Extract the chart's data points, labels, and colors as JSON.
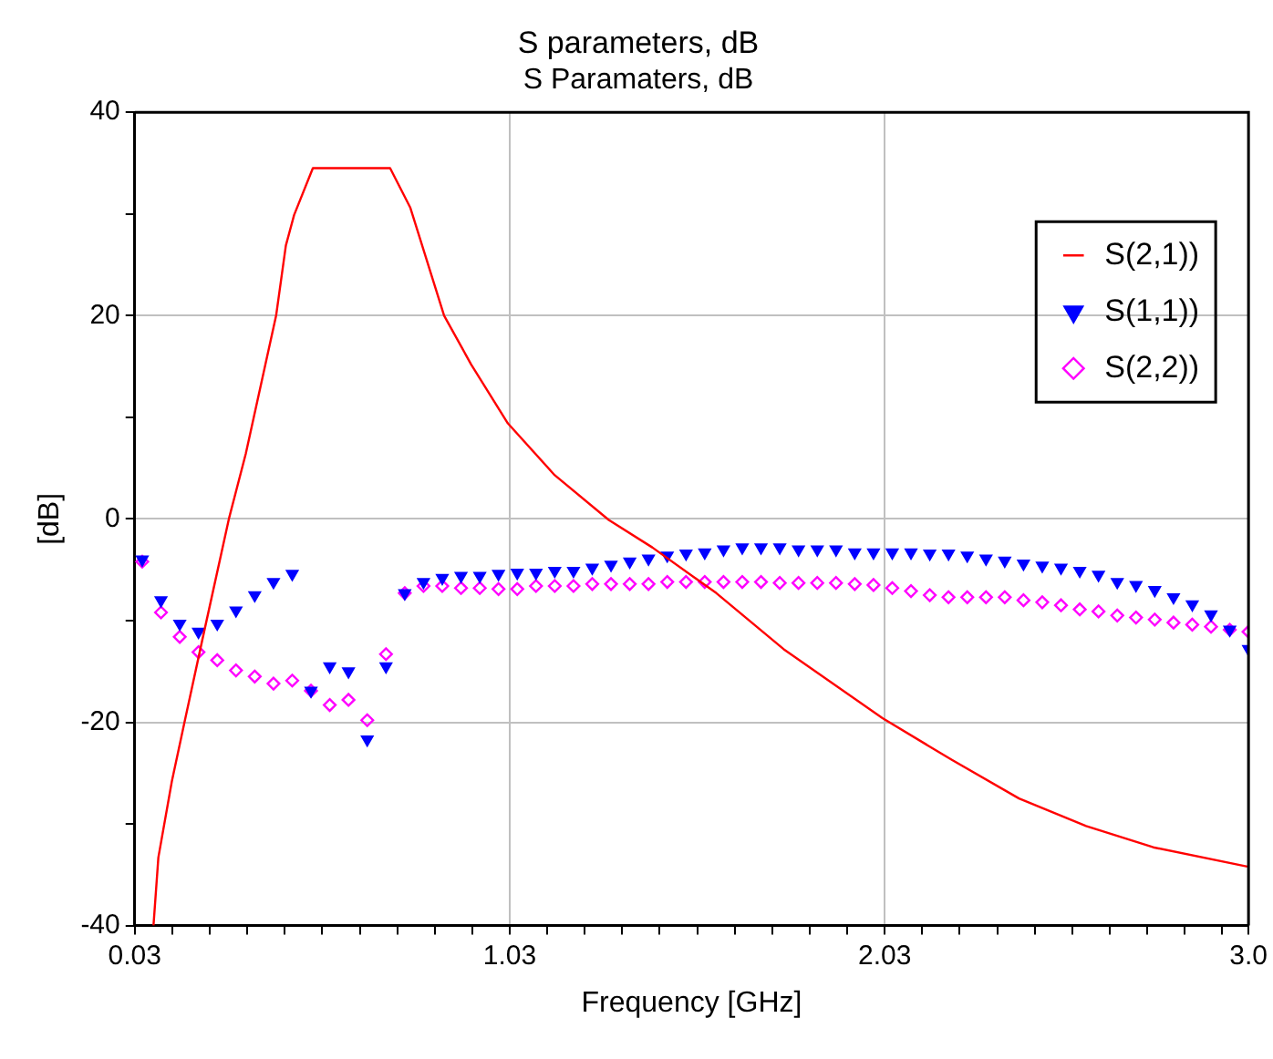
{
  "chart_data": {
    "type": "scatter",
    "title": "S parameters, dB",
    "subtitle": "S Paramaters, dB",
    "xlabel": "Frequency [GHz]",
    "ylabel": "[dB]",
    "xlim": [
      0.03,
      3.0
    ],
    "xticks": [
      0.03,
      {
        "value": 0.13,
        "label": null
      },
      {
        "value": 0.23,
        "label": null
      },
      {
        "value": 0.33,
        "label": null
      },
      {
        "value": 0.43,
        "label": null
      },
      {
        "value": 0.53,
        "label": null
      },
      {
        "value": 0.63,
        "label": null
      },
      {
        "value": 0.73,
        "label": null
      },
      {
        "value": 0.83,
        "label": null
      },
      {
        "value": 0.93,
        "label": null
      },
      1.03,
      {
        "value": 1.13,
        "label": null
      },
      {
        "value": 1.23,
        "label": null
      },
      {
        "value": 1.33,
        "label": null
      },
      {
        "value": 1.43,
        "label": null
      },
      {
        "value": 1.53,
        "label": null
      },
      {
        "value": 1.63,
        "label": null
      },
      {
        "value": 1.73,
        "label": null
      },
      {
        "value": 1.83,
        "label": null
      },
      {
        "value": 1.93,
        "label": null
      },
      2.03,
      {
        "value": 2.13,
        "label": null
      },
      {
        "value": 2.23,
        "label": null
      },
      {
        "value": 2.33,
        "label": null
      },
      {
        "value": 2.43,
        "label": null
      },
      {
        "value": 2.53,
        "label": null
      },
      {
        "value": 2.63,
        "label": null
      },
      {
        "value": 2.73,
        "label": null
      },
      {
        "value": 2.83,
        "label": null
      },
      {
        "value": 2.93,
        "label": null
      },
      {
        "value": 3.0,
        "label": "3.0"
      }
    ],
    "ylim": [
      -40,
      40
    ],
    "yticks": [
      -40,
      {
        "value": -30,
        "label": null
      },
      -20,
      {
        "value": -10,
        "label": null
      },
      0,
      {
        "value": 10,
        "label": null
      },
      20,
      {
        "value": 30,
        "label": null
      },
      40
    ],
    "grid": true,
    "legend": "top right",
    "x": [
      0.05,
      0.1,
      0.15,
      0.2,
      0.25,
      0.3,
      0.35,
      0.4,
      0.45,
      0.5,
      0.55,
      0.6,
      0.65,
      0.7,
      0.75,
      0.8,
      0.85,
      0.9,
      0.95,
      1.0,
      1.05,
      1.1,
      1.15,
      1.2,
      1.25,
      1.3,
      1.35,
      1.4,
      1.45,
      1.5,
      1.55,
      1.6,
      1.65,
      1.7,
      1.75,
      1.8,
      1.85,
      1.9,
      1.95,
      2.0,
      2.05,
      2.1,
      2.15,
      2.2,
      2.25,
      2.3,
      2.35,
      2.4,
      2.45,
      2.5,
      2.55,
      2.6,
      2.65,
      2.7,
      2.75,
      2.8,
      2.85,
      2.9,
      2.95,
      3.0
    ],
    "series": [
      {
        "name": "S(2,1))",
        "type": "line",
        "color": "#ff0000",
        "marker": "none",
        "line_style": "solid",
        "x": [
          0.08,
          0.093,
          0.129,
          0.165,
          0.209,
          0.281,
          0.326,
          0.407,
          0.433,
          0.455,
          0.505,
          0.711,
          0.765,
          0.855,
          0.927,
          1.025,
          1.15,
          1.294,
          1.41,
          1.581,
          1.76,
          2.024,
          2.209,
          2.388,
          2.567,
          2.746,
          2.997
        ],
        "values": [
          -40,
          -33.3,
          -25.8,
          -19.6,
          -12.1,
          0,
          6.4,
          20,
          26.9,
          29.9,
          34.5,
          34.5,
          30.6,
          20,
          15.2,
          9.4,
          4.3,
          -0.1,
          -2.8,
          -7.3,
          -12.8,
          -19.6,
          -23.7,
          -27.5,
          -30.2,
          -32.3,
          -34.2
        ]
      },
      {
        "name": "S(1,1))",
        "type": "scatter",
        "color": "#0000ff",
        "marker": "triangle",
        "values": [
          -4.0,
          -8.0,
          -10.3,
          -11.1,
          -10.3,
          -9.0,
          -7.5,
          -6.2,
          -5.4,
          -16.9,
          -14.5,
          -15.0,
          -21.7,
          -14.5,
          -7.3,
          -6.2,
          -5.8,
          -5.6,
          -5.6,
          -5.4,
          -5.3,
          -5.3,
          -5.1,
          -5.1,
          -4.8,
          -4.5,
          -4.2,
          -3.9,
          -3.6,
          -3.4,
          -3.3,
          -3.0,
          -2.8,
          -2.8,
          -2.8,
          -3.0,
          -3.0,
          -3.0,
          -3.3,
          -3.3,
          -3.3,
          -3.3,
          -3.4,
          -3.4,
          -3.6,
          -3.9,
          -4.1,
          -4.4,
          -4.6,
          -4.8,
          -5.1,
          -5.5,
          -6.2,
          -6.5,
          -7.0,
          -7.7,
          -8.4,
          -9.4,
          -10.9,
          -12.8
        ]
      },
      {
        "name": "S(2,2))",
        "type": "scatter",
        "color": "#ff00ff",
        "marker": "diamond",
        "values": [
          -4.2,
          -9.2,
          -11.6,
          -13.1,
          -13.9,
          -14.9,
          -15.5,
          -16.2,
          -15.9,
          -16.9,
          -18.3,
          -17.8,
          -19.8,
          -13.3,
          -7.3,
          -6.6,
          -6.6,
          -6.8,
          -6.8,
          -6.9,
          -6.9,
          -6.6,
          -6.6,
          -6.6,
          -6.4,
          -6.4,
          -6.4,
          -6.4,
          -6.2,
          -6.2,
          -6.2,
          -6.2,
          -6.2,
          -6.2,
          -6.3,
          -6.3,
          -6.3,
          -6.3,
          -6.4,
          -6.5,
          -6.8,
          -7.1,
          -7.5,
          -7.7,
          -7.7,
          -7.7,
          -7.7,
          -8.0,
          -8.2,
          -8.5,
          -8.9,
          -9.1,
          -9.5,
          -9.7,
          -9.9,
          -10.2,
          -10.4,
          -10.6,
          -10.9,
          -11.1
        ]
      }
    ]
  }
}
